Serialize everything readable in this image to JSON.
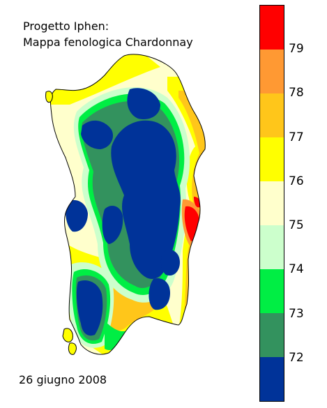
{
  "title": {
    "line1": "Progetto Iphen:",
    "line2": "Mappa fenologica Chardonnay"
  },
  "date": "26 giugno 2008",
  "legend": {
    "classes": [
      {
        "color": "#ff0000"
      },
      {
        "color": "#ff9933"
      },
      {
        "color": "#ffc61a"
      },
      {
        "color": "#ffff00"
      },
      {
        "color": "#ffffcc"
      },
      {
        "color": "#ccffcc"
      },
      {
        "color": "#00ee44"
      },
      {
        "color": "#33925e"
      },
      {
        "color": "#003399"
      }
    ],
    "ticks": [
      "79",
      "78",
      "77",
      "76",
      "75",
      "74",
      "73",
      "72"
    ]
  },
  "map": {
    "region": "Sardinia",
    "colors": {
      "dark_blue": "#003399",
      "dark_green": "#33925e",
      "green": "#00ee44",
      "light_green": "#ccffcc",
      "cream": "#ffffcc",
      "yellow": "#ffff00",
      "gold": "#ffc61a",
      "orange": "#ff9933",
      "red": "#ff0000"
    }
  }
}
